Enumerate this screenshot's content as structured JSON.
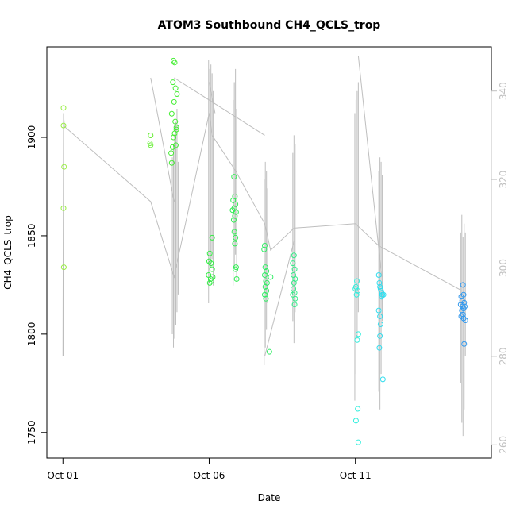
{
  "chart_data": {
    "type": "scatter",
    "title": "ATOM3 Southbound CH4_QCLS_trop",
    "xlabel": "Date",
    "ylabel": "CH4_QCLS_trop",
    "x_unit": "days after Oct 01",
    "xlim": [
      -0.55,
      14.65
    ],
    "ylim": [
      1737,
      1946
    ],
    "x_ticks": [
      {
        "value": 0,
        "label": "Oct 01"
      },
      {
        "value": 5,
        "label": "Oct 06"
      },
      {
        "value": 10,
        "label": "Oct 11"
      }
    ],
    "y_ticks": [
      1750,
      1800,
      1850,
      1900
    ],
    "y2lim": [
      257,
      350
    ],
    "y2_ticks": [
      260,
      280,
      300,
      320,
      340
    ],
    "y2_color": "#c0c0c0",
    "grid": false,
    "series": [
      {
        "marker": "open-circle",
        "color_by": "time (green to blue)",
        "points": [
          [
            0.02,
            1915,
            "#99ee44"
          ],
          [
            0.02,
            1906,
            "#99ee44"
          ],
          [
            0.04,
            1885,
            "#99ee44"
          ],
          [
            0.02,
            1864,
            "#99ee44"
          ],
          [
            0.03,
            1834,
            "#99ee44"
          ],
          [
            3.0,
            1901,
            "#66ee33"
          ],
          [
            2.98,
            1897,
            "#66ee33"
          ],
          [
            3.0,
            1896,
            "#66ee33"
          ],
          [
            3.78,
            1939,
            "#44ee33"
          ],
          [
            3.82,
            1938,
            "#44ee33"
          ],
          [
            3.76,
            1928,
            "#44ee33"
          ],
          [
            3.85,
            1925,
            "#44ee33"
          ],
          [
            3.9,
            1922,
            "#44ee33"
          ],
          [
            3.8,
            1918,
            "#44ee33"
          ],
          [
            3.72,
            1912,
            "#44ee33"
          ],
          [
            3.84,
            1908,
            "#44ee33"
          ],
          [
            3.88,
            1904,
            "#44ee33"
          ],
          [
            3.82,
            1902,
            "#44ee33"
          ],
          [
            3.78,
            1900,
            "#44ee33"
          ],
          [
            3.75,
            1895,
            "#44ee33"
          ],
          [
            3.7,
            1892,
            "#44ee33"
          ],
          [
            3.86,
            1896,
            "#44ee33"
          ],
          [
            3.72,
            1887,
            "#44ee33"
          ],
          [
            3.88,
            1905,
            "#44ee33"
          ],
          [
            5.1,
            1849,
            "#33ee44"
          ],
          [
            5.02,
            1841,
            "#33ee44"
          ],
          [
            5.0,
            1837,
            "#33ee44"
          ],
          [
            5.06,
            1836,
            "#33ee44"
          ],
          [
            5.1,
            1833,
            "#33ee44"
          ],
          [
            4.98,
            1830,
            "#33ee44"
          ],
          [
            5.05,
            1828,
            "#33ee44"
          ],
          [
            5.02,
            1826,
            "#33ee44"
          ],
          [
            5.08,
            1827,
            "#33ee44"
          ],
          [
            5.12,
            1829,
            "#33ee44"
          ],
          [
            5.85,
            1880,
            "#33ee55"
          ],
          [
            5.88,
            1870,
            "#33ee55"
          ],
          [
            5.82,
            1868,
            "#33ee55"
          ],
          [
            5.9,
            1866,
            "#33ee55"
          ],
          [
            5.86,
            1864,
            "#33ee55"
          ],
          [
            5.8,
            1863,
            "#33ee55"
          ],
          [
            5.92,
            1862,
            "#33ee55"
          ],
          [
            5.88,
            1860,
            "#33ee55"
          ],
          [
            5.84,
            1858,
            "#33ee55"
          ],
          [
            5.86,
            1852,
            "#33ee55"
          ],
          [
            5.9,
            1849,
            "#33ee55"
          ],
          [
            5.88,
            1846,
            "#33ee55"
          ],
          [
            5.92,
            1834,
            "#33ee55"
          ],
          [
            5.9,
            1833,
            "#33ee55"
          ],
          [
            5.94,
            1828,
            "#33ee55"
          ],
          [
            6.9,
            1845,
            "#33ee66"
          ],
          [
            6.88,
            1843,
            "#33ee66"
          ],
          [
            6.92,
            1834,
            "#33ee66"
          ],
          [
            6.96,
            1832,
            "#33ee66"
          ],
          [
            6.9,
            1830,
            "#33ee66"
          ],
          [
            6.94,
            1827,
            "#33ee66"
          ],
          [
            6.98,
            1826,
            "#33ee66"
          ],
          [
            6.92,
            1824,
            "#33ee66"
          ],
          [
            6.96,
            1822,
            "#33ee66"
          ],
          [
            6.9,
            1820,
            "#33ee66"
          ],
          [
            6.94,
            1818,
            "#33ee66"
          ],
          [
            7.1,
            1829,
            "#33ee66"
          ],
          [
            7.06,
            1791,
            "#33ee66"
          ],
          [
            7.9,
            1840,
            "#33ee88"
          ],
          [
            7.86,
            1836,
            "#33ee88"
          ],
          [
            7.92,
            1833,
            "#33ee88"
          ],
          [
            7.88,
            1830,
            "#33ee88"
          ],
          [
            7.94,
            1828,
            "#33ee88"
          ],
          [
            7.9,
            1826,
            "#33ee88"
          ],
          [
            7.88,
            1823,
            "#33ee88"
          ],
          [
            7.92,
            1821,
            "#33ee88"
          ],
          [
            7.86,
            1820,
            "#33ee88"
          ],
          [
            7.94,
            1818,
            "#33ee88"
          ],
          [
            7.92,
            1815,
            "#33ee88"
          ],
          [
            10.05,
            1827,
            "#33eedd"
          ],
          [
            10.02,
            1824,
            "#33eedd"
          ],
          [
            10.0,
            1823,
            "#33eedd"
          ],
          [
            10.08,
            1822,
            "#33eedd"
          ],
          [
            10.04,
            1820,
            "#33eedd"
          ],
          [
            10.1,
            1800,
            "#33eedd"
          ],
          [
            10.06,
            1797,
            "#33eedd"
          ],
          [
            10.08,
            1762,
            "#33eedd"
          ],
          [
            10.02,
            1756,
            "#33eedd"
          ],
          [
            10.1,
            1745,
            "#33eedd"
          ],
          [
            10.8,
            1830,
            "#33ddee"
          ],
          [
            10.82,
            1826,
            "#33ddee"
          ],
          [
            10.84,
            1824,
            "#33ddee"
          ],
          [
            10.86,
            1823,
            "#33ddee"
          ],
          [
            10.88,
            1822,
            "#33ddee"
          ],
          [
            10.9,
            1821,
            "#33ddee"
          ],
          [
            10.92,
            1820,
            "#33ddee"
          ],
          [
            10.96,
            1820,
            "#33ddee"
          ],
          [
            10.9,
            1819,
            "#33ddee"
          ],
          [
            10.8,
            1812,
            "#33ddee"
          ],
          [
            10.84,
            1809,
            "#33ddee"
          ],
          [
            10.86,
            1805,
            "#33ddee"
          ],
          [
            10.84,
            1799,
            "#33ddee"
          ],
          [
            10.82,
            1793,
            "#33ddee"
          ],
          [
            10.94,
            1777,
            "#33ddee"
          ],
          [
            13.68,
            1825,
            "#3399ee"
          ],
          [
            13.62,
            1819,
            "#3399ee"
          ],
          [
            13.7,
            1820,
            "#3399ee"
          ],
          [
            13.65,
            1817,
            "#3399ee"
          ],
          [
            13.72,
            1816,
            "#3399ee"
          ],
          [
            13.6,
            1815,
            "#3399ee"
          ],
          [
            13.66,
            1814,
            "#3399ee"
          ],
          [
            13.74,
            1814,
            "#3399ee"
          ],
          [
            13.7,
            1813,
            "#3399ee"
          ],
          [
            13.64,
            1812,
            "#3399ee"
          ],
          [
            13.68,
            1810,
            "#3399ee"
          ],
          [
            13.62,
            1809,
            "#3399ee"
          ],
          [
            13.7,
            1808,
            "#3399ee"
          ],
          [
            13.76,
            1807,
            "#3399ee"
          ],
          [
            13.72,
            1795,
            "#3399ee"
          ]
        ]
      }
    ],
    "secondary_series": {
      "type": "line",
      "color": "#bebebe",
      "axis": "right",
      "polyline": [
        [
          0.0,
          280
        ],
        [
          0.02,
          335
        ],
        [
          0.05,
          332
        ],
        [
          3.0,
          315
        ],
        [
          3.8,
          298
        ],
        [
          5.0,
          335
        ],
        [
          5.1,
          330
        ],
        [
          5.9,
          322
        ],
        [
          6.9,
          310
        ],
        [
          7.1,
          304
        ],
        [
          7.9,
          309
        ],
        [
          10.0,
          310
        ],
        [
          10.8,
          305
        ],
        [
          13.6,
          295
        ]
      ],
      "connectors": [
        [
          [
            3.8,
            343
          ],
          [
            6.9,
            330
          ]
        ],
        [
          [
            3.0,
            343
          ],
          [
            3.8,
            315
          ]
        ],
        [
          [
            10.1,
            348
          ],
          [
            10.9,
            298
          ]
        ],
        [
          [
            5.0,
            342
          ],
          [
            5.2,
            335
          ]
        ],
        [
          [
            6.9,
            280
          ],
          [
            7.9,
            306
          ]
        ]
      ],
      "spikes": [
        [
          0.02,
          280,
          335
        ],
        [
          3.78,
          282,
          328
        ],
        [
          3.82,
          284,
          330
        ],
        [
          3.86,
          287,
          333
        ],
        [
          3.9,
          290,
          336
        ],
        [
          3.74,
          285,
          325
        ],
        [
          3.94,
          294,
          324
        ],
        [
          4.98,
          292,
          347
        ],
        [
          5.02,
          298,
          345
        ],
        [
          5.06,
          300,
          346
        ],
        [
          5.1,
          302,
          344
        ],
        [
          5.14,
          296,
          340
        ],
        [
          5.82,
          296,
          338
        ],
        [
          5.86,
          300,
          342
        ],
        [
          5.9,
          303,
          345
        ],
        [
          5.94,
          297,
          336
        ],
        [
          6.88,
          278,
          320
        ],
        [
          6.92,
          282,
          324
        ],
        [
          6.96,
          286,
          322
        ],
        [
          7.0,
          292,
          318
        ],
        [
          7.86,
          288,
          326
        ],
        [
          7.9,
          283,
          330
        ],
        [
          7.94,
          290,
          328
        ],
        [
          9.98,
          270,
          335
        ],
        [
          10.02,
          276,
          338
        ],
        [
          10.06,
          284,
          340
        ],
        [
          10.1,
          290,
          342
        ],
        [
          10.8,
          272,
          322
        ],
        [
          10.84,
          268,
          325
        ],
        [
          10.88,
          276,
          324
        ],
        [
          10.92,
          288,
          321
        ],
        [
          13.6,
          274,
          308
        ],
        [
          13.64,
          265,
          312
        ],
        [
          13.68,
          262,
          307
        ],
        [
          13.72,
          268,
          310
        ],
        [
          13.76,
          280,
          308
        ]
      ]
    }
  }
}
